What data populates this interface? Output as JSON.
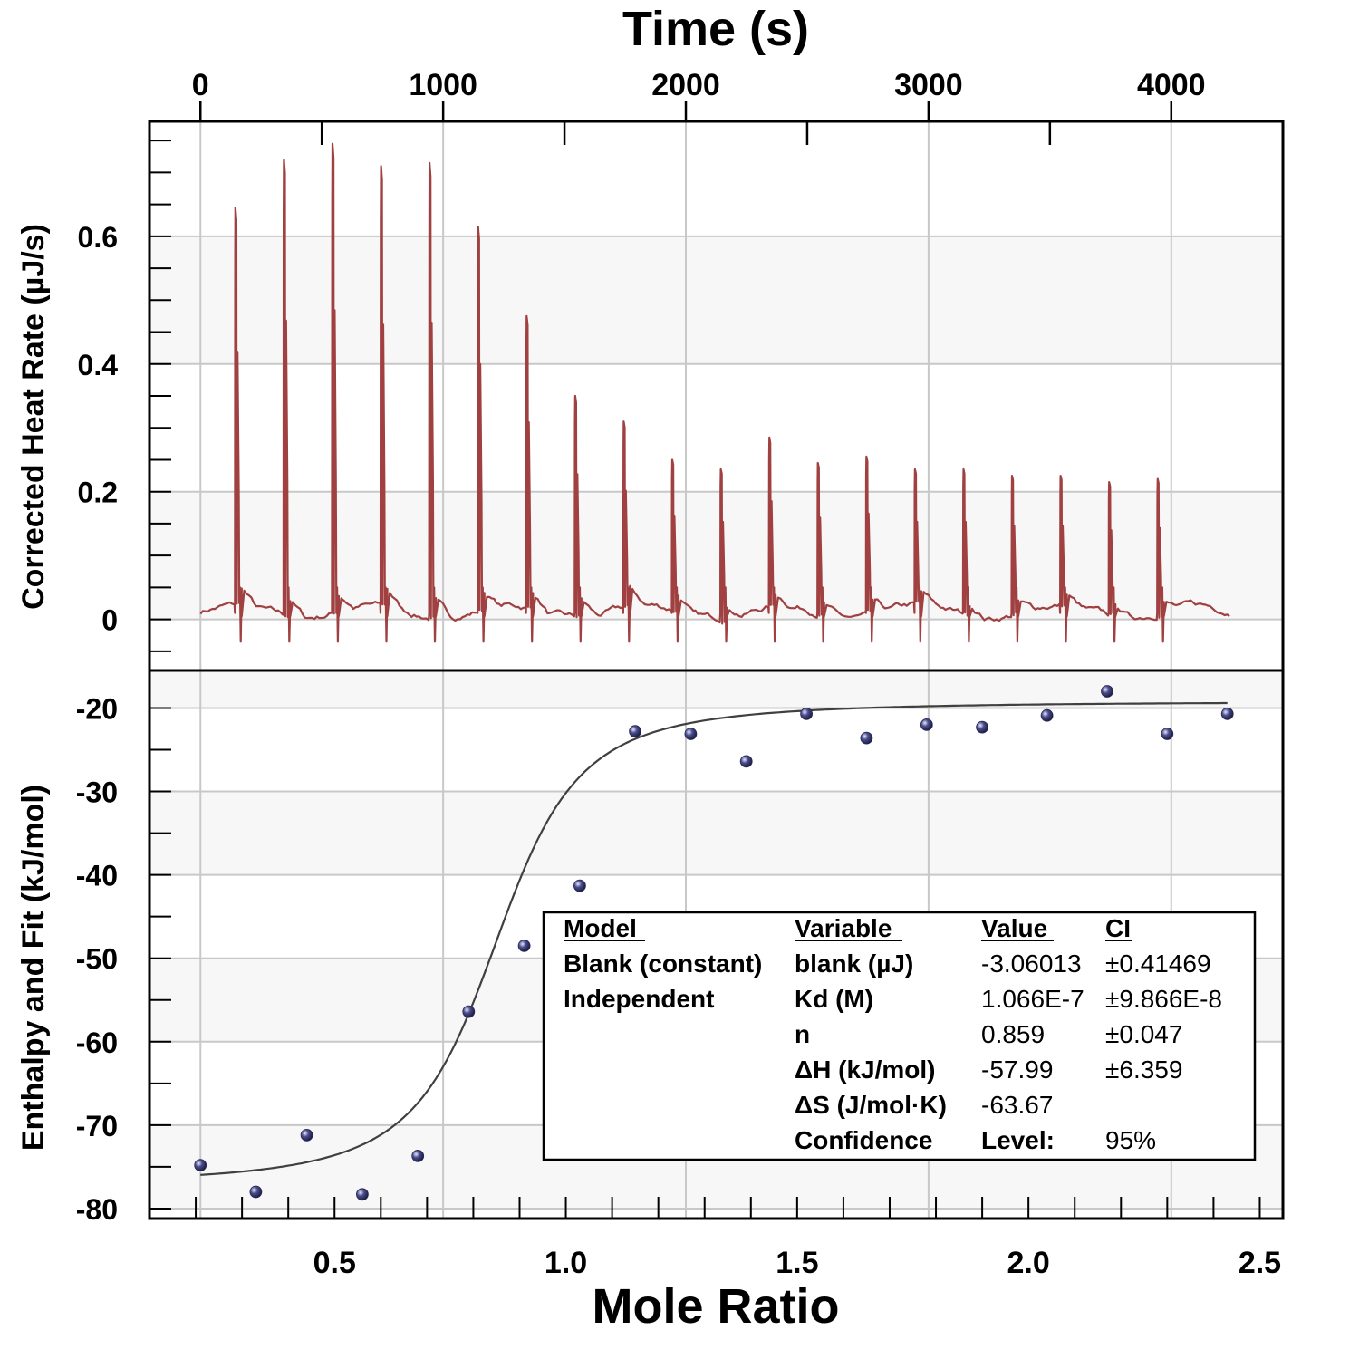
{
  "chart_data": [
    {
      "type": "line",
      "panel": "thermogram",
      "title": "Time (s)",
      "xlabel": "Time (s)",
      "ylabel": "Corrected Heat Rate (µJ/s)",
      "xlim": [
        -210,
        4460
      ],
      "ylim": [
        -0.08,
        0.78
      ],
      "x_ticks": [
        "0",
        "1000",
        "2000",
        "3000",
        "4000"
      ],
      "y_ticks": [
        "0",
        "0.2",
        "0.4",
        "0.6"
      ],
      "series_color": "#A04040",
      "injection_times": [
        143,
        343,
        543,
        743,
        943,
        1143,
        1343,
        1543,
        1743,
        1943,
        2143,
        2343,
        2543,
        2743,
        2943,
        3143,
        3343,
        3543,
        3743,
        3943
      ],
      "peak_heights": [
        0.645,
        0.72,
        0.745,
        0.71,
        0.715,
        0.615,
        0.475,
        0.35,
        0.31,
        0.25,
        0.235,
        0.285,
        0.245,
        0.255,
        0.235,
        0.235,
        0.225,
        0.225,
        0.215,
        0.22
      ],
      "baseline_time_range": [
        0,
        4240
      ]
    },
    {
      "type": "scatter",
      "panel": "isotherm",
      "xlabel": "Mole Ratio",
      "ylabel": "Enthalpy and Fit (kJ/mol)",
      "xlim": [
        0.1,
        2.55
      ],
      "ylim": [
        -81.2,
        -15.5
      ],
      "x_ticks": [
        "0.5",
        "1.0",
        "1.5",
        "2.0",
        "2.5"
      ],
      "y_ticks": [
        "-20",
        "-30",
        "-40",
        "-50",
        "-60",
        "-70",
        "-80"
      ],
      "point_color": "#4A4C8C",
      "fit_color": "#404040",
      "points": {
        "x": [
          0.21,
          0.33,
          0.44,
          0.56,
          0.68,
          0.79,
          0.91,
          1.03,
          1.15,
          1.27,
          1.39,
          1.52,
          1.65,
          1.78,
          1.9,
          2.04,
          2.17,
          2.3,
          2.43
        ],
        "y": [
          -74.8,
          -78.0,
          -71.2,
          -78.3,
          -73.7,
          -56.4,
          -48.5,
          -41.3,
          -22.8,
          -23.1,
          -26.4,
          -20.7,
          -23.6,
          -22.0,
          -22.3,
          -20.9,
          -18.0,
          -23.1,
          -20.7
        ]
      },
      "fit_model": {
        "Kd": 1.066e-07,
        "n": 0.859,
        "dH": -57.99,
        "blank_kJmol": -19.2,
        "x_range": [
          0.21,
          2.43
        ]
      }
    }
  ],
  "fit_table": {
    "headers": [
      "Model",
      "Variable",
      "Value",
      "CI"
    ],
    "rows": [
      [
        "Blank (constant)",
        "blank (µJ)",
        "-3.06013",
        "±0.41469"
      ],
      [
        "Independent",
        "Kd (M)",
        "1.066E-7",
        "±9.866E-8"
      ],
      [
        "",
        "n",
        "0.859",
        "±0.047"
      ],
      [
        "",
        "ΔH (kJ/mol)",
        "-57.99",
        "±6.359"
      ],
      [
        "",
        "ΔS (J/mol·K)",
        "-63.67",
        ""
      ],
      [
        "",
        "Confidence",
        "Level:",
        "95%"
      ]
    ]
  }
}
